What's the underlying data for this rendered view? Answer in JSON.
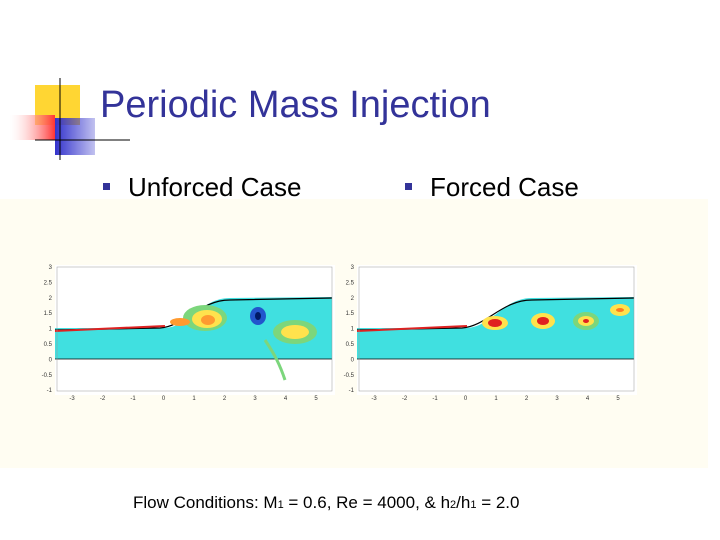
{
  "title": "Periodic Mass Injection",
  "bullets": [
    "Unforced Case",
    "Forced Case"
  ],
  "panels": [
    {
      "yticks": [
        "3",
        "2.5",
        "2",
        "1.5",
        "1",
        "0.5",
        "0",
        "-0.5",
        "-1"
      ],
      "xticks": [
        "-3",
        "-2",
        "-1",
        "0",
        "1",
        "2",
        "3",
        "4",
        "5"
      ]
    },
    {
      "yticks": [
        "3",
        "2.5",
        "2",
        "1.5",
        "1",
        "0.5",
        "0",
        "-0.5",
        "-1"
      ],
      "xticks": [
        "-3",
        "-2",
        "-1",
        "0",
        "1",
        "2",
        "3",
        "4",
        "5"
      ]
    }
  ],
  "footer": {
    "parts": [
      "Flow Conditions: M",
      "1",
      " = 0.6, Re = 4000, & h",
      "2",
      "/h",
      "1",
      " = 2.0"
    ]
  }
}
